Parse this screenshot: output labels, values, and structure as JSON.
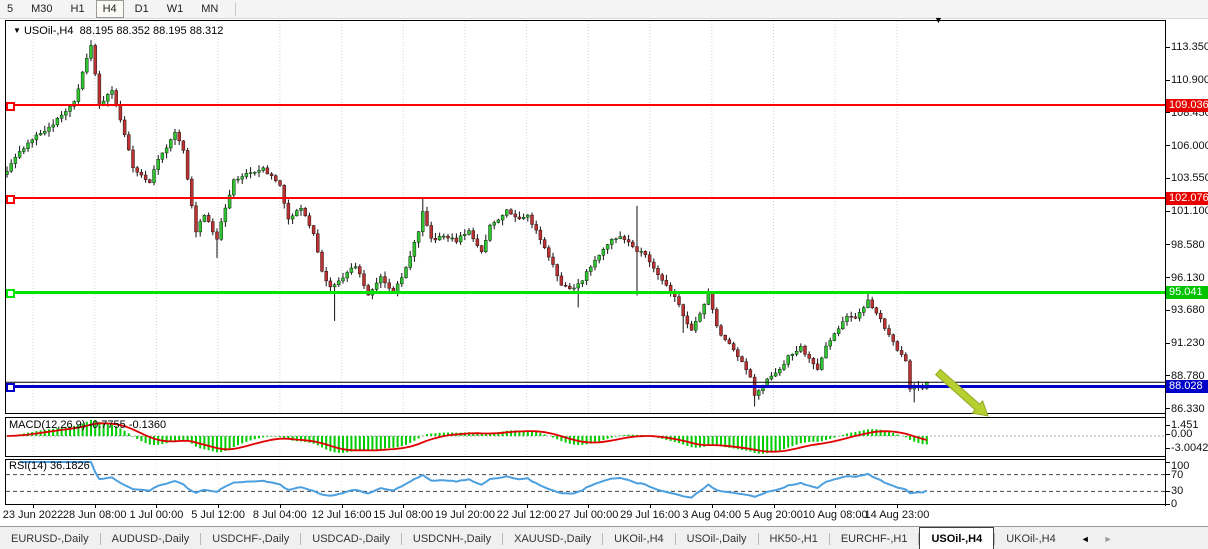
{
  "toolbar": {
    "timeframes": [
      {
        "label": "5",
        "active": false
      },
      {
        "label": "M30",
        "active": false
      },
      {
        "label": "H1",
        "active": false
      },
      {
        "label": "H4",
        "active": true
      },
      {
        "label": "D1",
        "active": false
      },
      {
        "label": "W1",
        "active": false
      },
      {
        "label": "MN",
        "active": false
      }
    ]
  },
  "chart": {
    "symbol": "USOil-,H4",
    "ohlc_text": "88.195 88.352 88.195 88.312",
    "caret_icon": "▼",
    "end_marker_icon": "▼"
  },
  "price_axis": {
    "labels": [
      "113.350",
      "110.900",
      "108.450",
      "106.000",
      "103.550",
      "101.100",
      "98.580",
      "96.130",
      "93.680",
      "91.230",
      "88.780",
      "86.330"
    ],
    "tags": [
      {
        "text": "109.036",
        "color": "#e80000"
      },
      {
        "text": "102.076",
        "color": "#e80000"
      },
      {
        "text": "95.041",
        "color": "#00c300"
      },
      {
        "text": "88.028",
        "color": "#0000c8"
      }
    ]
  },
  "levels": [
    {
      "price": 109.036,
      "color": "#ff0000",
      "thickness": 2
    },
    {
      "price": 102.076,
      "color": "#ff0000",
      "thickness": 2
    },
    {
      "price": 95.041,
      "color": "#00e400",
      "thickness": 3
    },
    {
      "price": 88.028,
      "color": "#0000c8",
      "thickness": 3
    }
  ],
  "current_price_line": {
    "price": 88.312,
    "color": "#000000"
  },
  "time_axis": {
    "labels": [
      "23 Jun 2022",
      "28 Jun 08:00",
      "1 Jul 00:00",
      "5 Jul 12:00",
      "8 Jul 04:00",
      "12 Jul 16:00",
      "15 Jul 08:00",
      "19 Jul 20:00",
      "22 Jul 12:00",
      "27 Jul 00:00",
      "29 Jul 16:00",
      "3 Aug 04:00",
      "5 Aug 20:00",
      "10 Aug 08:00",
      "14 Aug 23:00"
    ]
  },
  "indicators": {
    "macd": {
      "label": "MACD(12,26,9) -0.7755 -0.1360",
      "axis_labels": [
        "1.451",
        "0.00",
        "-3.0042"
      ],
      "histogram_color": "#00cc00",
      "signal_color": "#e00000"
    },
    "rsi": {
      "label": "RSI(14) 36.1826",
      "axis_labels": [
        "100",
        "70",
        "30",
        "0"
      ],
      "levels": [
        70,
        30
      ],
      "line_color": "#4da0e0"
    }
  },
  "tabs": {
    "items": [
      {
        "label": "EURUSD-,Daily",
        "active": false
      },
      {
        "label": "AUDUSD-,Daily",
        "active": false
      },
      {
        "label": "USDCHF-,Daily",
        "active": false
      },
      {
        "label": "USDCAD-,Daily",
        "active": false
      },
      {
        "label": "USDCNH-,Daily",
        "active": false
      },
      {
        "label": "XAUUSD-,Daily",
        "active": false
      },
      {
        "label": "UKOil-,H4",
        "active": false
      },
      {
        "label": "USOil-,Daily",
        "active": false
      },
      {
        "label": "HK50-,H1",
        "active": false
      },
      {
        "label": "EURCHF-,H1",
        "active": false
      },
      {
        "label": "USOil-,H4",
        "active": true
      },
      {
        "label": "UKOil-,H4",
        "active": false
      }
    ],
    "scroll_left_icon": "◄",
    "scroll_right_icon": "►"
  },
  "annotations": {
    "arrow": {
      "color": "#b8cf30",
      "stroke": "#93a827",
      "direction": "down-right"
    }
  },
  "chart_data": {
    "type": "candlestick",
    "symbol": "USOil",
    "timeframe": "H4",
    "x_range": [
      "23 Jun 2022",
      "14 Aug 23:00"
    ],
    "visible_price_range": [
      86.0,
      115.2
    ],
    "num_candles": 220,
    "up_color": "#2fc42f",
    "down_color": "#ba3232",
    "last_candle": {
      "open": 88.195,
      "high": 88.352,
      "low": 88.195,
      "close": 88.312
    },
    "price_anchors": [
      [
        0,
        104.2
      ],
      [
        5,
        106.3
      ],
      [
        11,
        107.6
      ],
      [
        16,
        109.3
      ],
      [
        20,
        113.5
      ],
      [
        22,
        109.0
      ],
      [
        25,
        110.2
      ],
      [
        27,
        107.9
      ],
      [
        30,
        104.4
      ],
      [
        34,
        103.2
      ],
      [
        36,
        105.0
      ],
      [
        40,
        106.9
      ],
      [
        42,
        105.6
      ],
      [
        45,
        99.6
      ],
      [
        47,
        100.9
      ],
      [
        50,
        99.0
      ],
      [
        51,
        100.3
      ],
      [
        54,
        103.4
      ],
      [
        58,
        104.0
      ],
      [
        61,
        104.3
      ],
      [
        65,
        103.0
      ],
      [
        67,
        100.4
      ],
      [
        70,
        101.4
      ],
      [
        73,
        99.3
      ],
      [
        75,
        96.6
      ],
      [
        77,
        95.4
      ],
      [
        80,
        96.2
      ],
      [
        83,
        97.0
      ],
      [
        86,
        94.9
      ],
      [
        89,
        96.1
      ],
      [
        92,
        95.0
      ],
      [
        95,
        96.8
      ],
      [
        98,
        99.6
      ],
      [
        99,
        101.0
      ],
      [
        101,
        99.0
      ],
      [
        104,
        99.2
      ],
      [
        107,
        98.9
      ],
      [
        110,
        99.7
      ],
      [
        113,
        98.0
      ],
      [
        115,
        100.0
      ],
      [
        119,
        101.1
      ],
      [
        122,
        100.5
      ],
      [
        124,
        100.8
      ],
      [
        127,
        99.0
      ],
      [
        130,
        97.0
      ],
      [
        132,
        95.6
      ],
      [
        135,
        95.3
      ],
      [
        137,
        96.0
      ],
      [
        140,
        97.5
      ],
      [
        144,
        98.9
      ],
      [
        146,
        99.3
      ],
      [
        150,
        98.2
      ],
      [
        152,
        97.9
      ],
      [
        155,
        96.3
      ],
      [
        157,
        95.5
      ],
      [
        159,
        94.8
      ],
      [
        161,
        93.2
      ],
      [
        163,
        92.3
      ],
      [
        165,
        93.5
      ],
      [
        167,
        95.0
      ],
      [
        169,
        92.5
      ],
      [
        170,
        91.8
      ],
      [
        173,
        90.8
      ],
      [
        175,
        89.8
      ],
      [
        177,
        88.6
      ],
      [
        178,
        87.3
      ],
      [
        179,
        87.6
      ],
      [
        181,
        88.6
      ],
      [
        184,
        89.3
      ],
      [
        186,
        90.2
      ],
      [
        189,
        90.9
      ],
      [
        191,
        90.1
      ],
      [
        193,
        89.2
      ],
      [
        195,
        91.0
      ],
      [
        198,
        92.4
      ],
      [
        200,
        93.2
      ],
      [
        202,
        93.0
      ],
      [
        205,
        94.5
      ],
      [
        207,
        93.5
      ],
      [
        210,
        91.9
      ],
      [
        212,
        90.8
      ],
      [
        214,
        89.8
      ],
      [
        215,
        87.9
      ],
      [
        217,
        88.1
      ],
      [
        218,
        87.9
      ],
      [
        219,
        88.312
      ]
    ],
    "wick_overrides": {
      "20": {
        "high": 113.9
      },
      "50": {
        "low": 97.6
      },
      "78": {
        "low": 92.9
      },
      "99": {
        "high": 102.15
      },
      "136": {
        "low": 93.9
      },
      "150": {
        "high": 101.5,
        "low": 94.8
      },
      "161": {
        "low": 92.0
      },
      "178": {
        "low": 86.5
      },
      "205": {
        "high": 95.03
      },
      "216": {
        "low": 86.8
      }
    },
    "levels": [
      109.036,
      102.076,
      95.041,
      88.028
    ],
    "last_price": 88.312
  }
}
